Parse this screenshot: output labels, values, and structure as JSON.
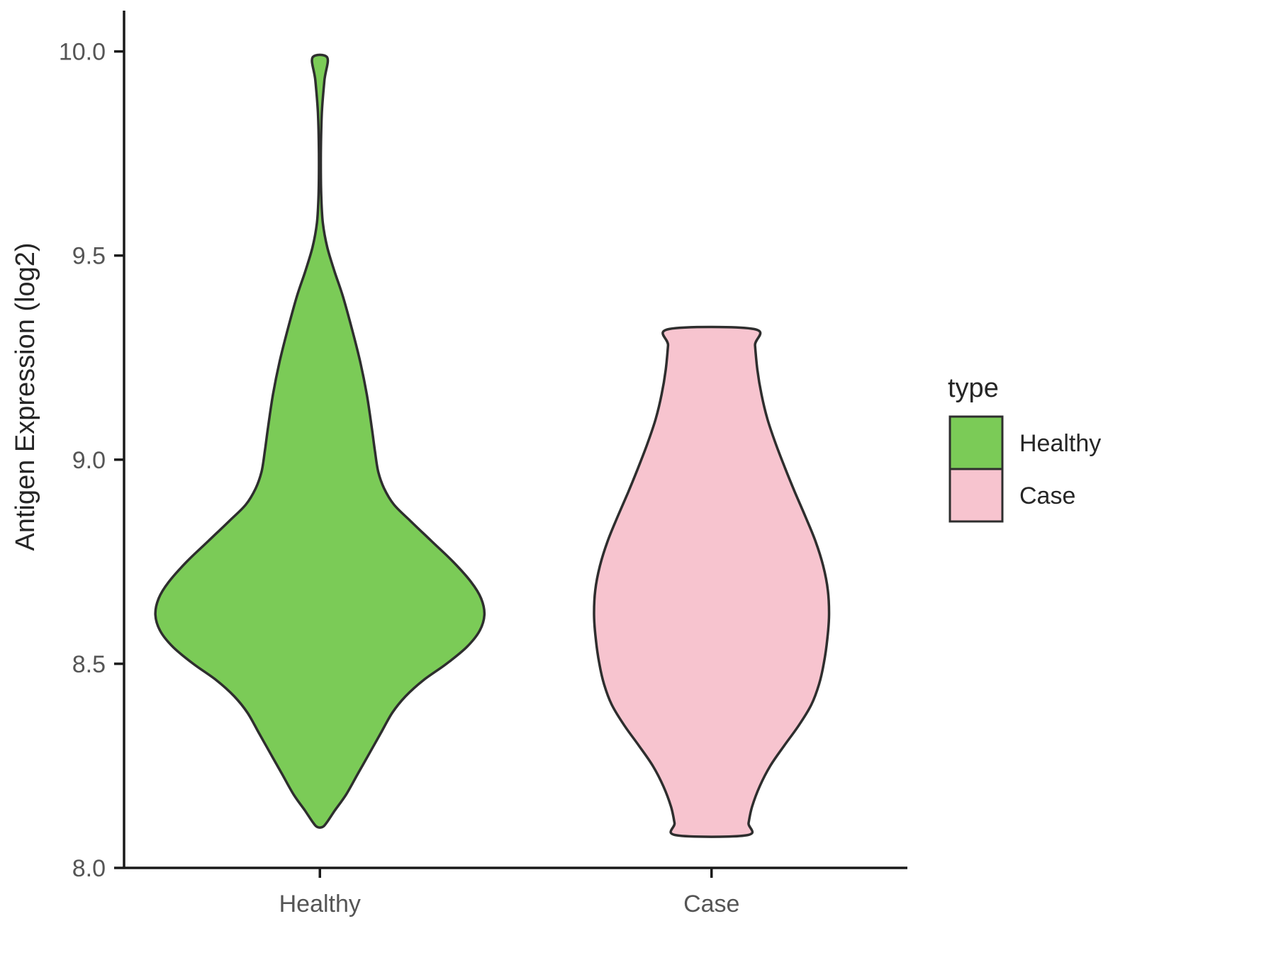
{
  "chart_data": {
    "type": "violin",
    "title": "",
    "xlabel": "",
    "ylabel": "Antigen Expression (log2)",
    "ylim": [
      8.0,
      10.1
    ],
    "ytick_values": [
      8.0,
      8.5,
      9.0,
      9.5,
      10.0
    ],
    "yticks": [
      "8.0",
      "8.5",
      "9.0",
      "9.5",
      "10.0"
    ],
    "categories": [
      "Healthy",
      "Case"
    ],
    "grid": false,
    "legend": {
      "title": "type",
      "position": "right",
      "entries": [
        {
          "label": "Healthy",
          "color": "#7BCB57"
        },
        {
          "label": "Case",
          "color": "#F7C4CF"
        }
      ]
    },
    "style": {
      "outline_color": "#2E2E2E",
      "axis_color": "#1A1A1A",
      "tick_label_color": "#555555",
      "title_color": "#262626",
      "background": "#FFFFFF"
    },
    "series": [
      {
        "name": "Healthy",
        "fill": "#7BCB57",
        "value_range": [
          8.1,
          9.985
        ],
        "max_halfwidth": 0.42,
        "profile": [
          [
            9.985,
            0.045
          ],
          [
            9.93,
            0.028
          ],
          [
            9.85,
            0.012
          ],
          [
            9.75,
            0.006
          ],
          [
            9.65,
            0.008
          ],
          [
            9.58,
            0.018
          ],
          [
            9.52,
            0.045
          ],
          [
            9.46,
            0.09
          ],
          [
            9.4,
            0.14
          ],
          [
            9.32,
            0.195
          ],
          [
            9.24,
            0.245
          ],
          [
            9.16,
            0.285
          ],
          [
            9.08,
            0.315
          ],
          [
            9.02,
            0.335
          ],
          [
            8.97,
            0.355
          ],
          [
            8.93,
            0.39
          ],
          [
            8.89,
            0.45
          ],
          [
            8.85,
            0.55
          ],
          [
            8.8,
            0.68
          ],
          [
            8.75,
            0.81
          ],
          [
            8.7,
            0.92
          ],
          [
            8.66,
            0.98
          ],
          [
            8.62,
            1.0
          ],
          [
            8.58,
            0.97
          ],
          [
            8.54,
            0.89
          ],
          [
            8.5,
            0.77
          ],
          [
            8.46,
            0.63
          ],
          [
            8.42,
            0.52
          ],
          [
            8.38,
            0.44
          ],
          [
            8.33,
            0.37
          ],
          [
            8.28,
            0.3
          ],
          [
            8.23,
            0.23
          ],
          [
            8.18,
            0.16
          ],
          [
            8.14,
            0.09
          ],
          [
            8.11,
            0.04
          ],
          [
            8.1,
            0.015
          ]
        ]
      },
      {
        "name": "Case",
        "fill": "#F7C4CF",
        "value_range": [
          8.08,
          9.32
        ],
        "max_halfwidth": 0.3,
        "profile": [
          [
            9.32,
            0.36
          ],
          [
            9.28,
            0.37
          ],
          [
            9.22,
            0.39
          ],
          [
            9.16,
            0.425
          ],
          [
            9.1,
            0.475
          ],
          [
            9.04,
            0.545
          ],
          [
            8.98,
            0.625
          ],
          [
            8.92,
            0.71
          ],
          [
            8.86,
            0.8
          ],
          [
            8.8,
            0.885
          ],
          [
            8.74,
            0.95
          ],
          [
            8.68,
            0.99
          ],
          [
            8.62,
            1.0
          ],
          [
            8.56,
            0.985
          ],
          [
            8.5,
            0.955
          ],
          [
            8.45,
            0.915
          ],
          [
            8.4,
            0.85
          ],
          [
            8.35,
            0.745
          ],
          [
            8.3,
            0.62
          ],
          [
            8.25,
            0.5
          ],
          [
            8.2,
            0.41
          ],
          [
            8.15,
            0.345
          ],
          [
            8.11,
            0.315
          ],
          [
            8.08,
            0.3
          ]
        ]
      }
    ]
  }
}
